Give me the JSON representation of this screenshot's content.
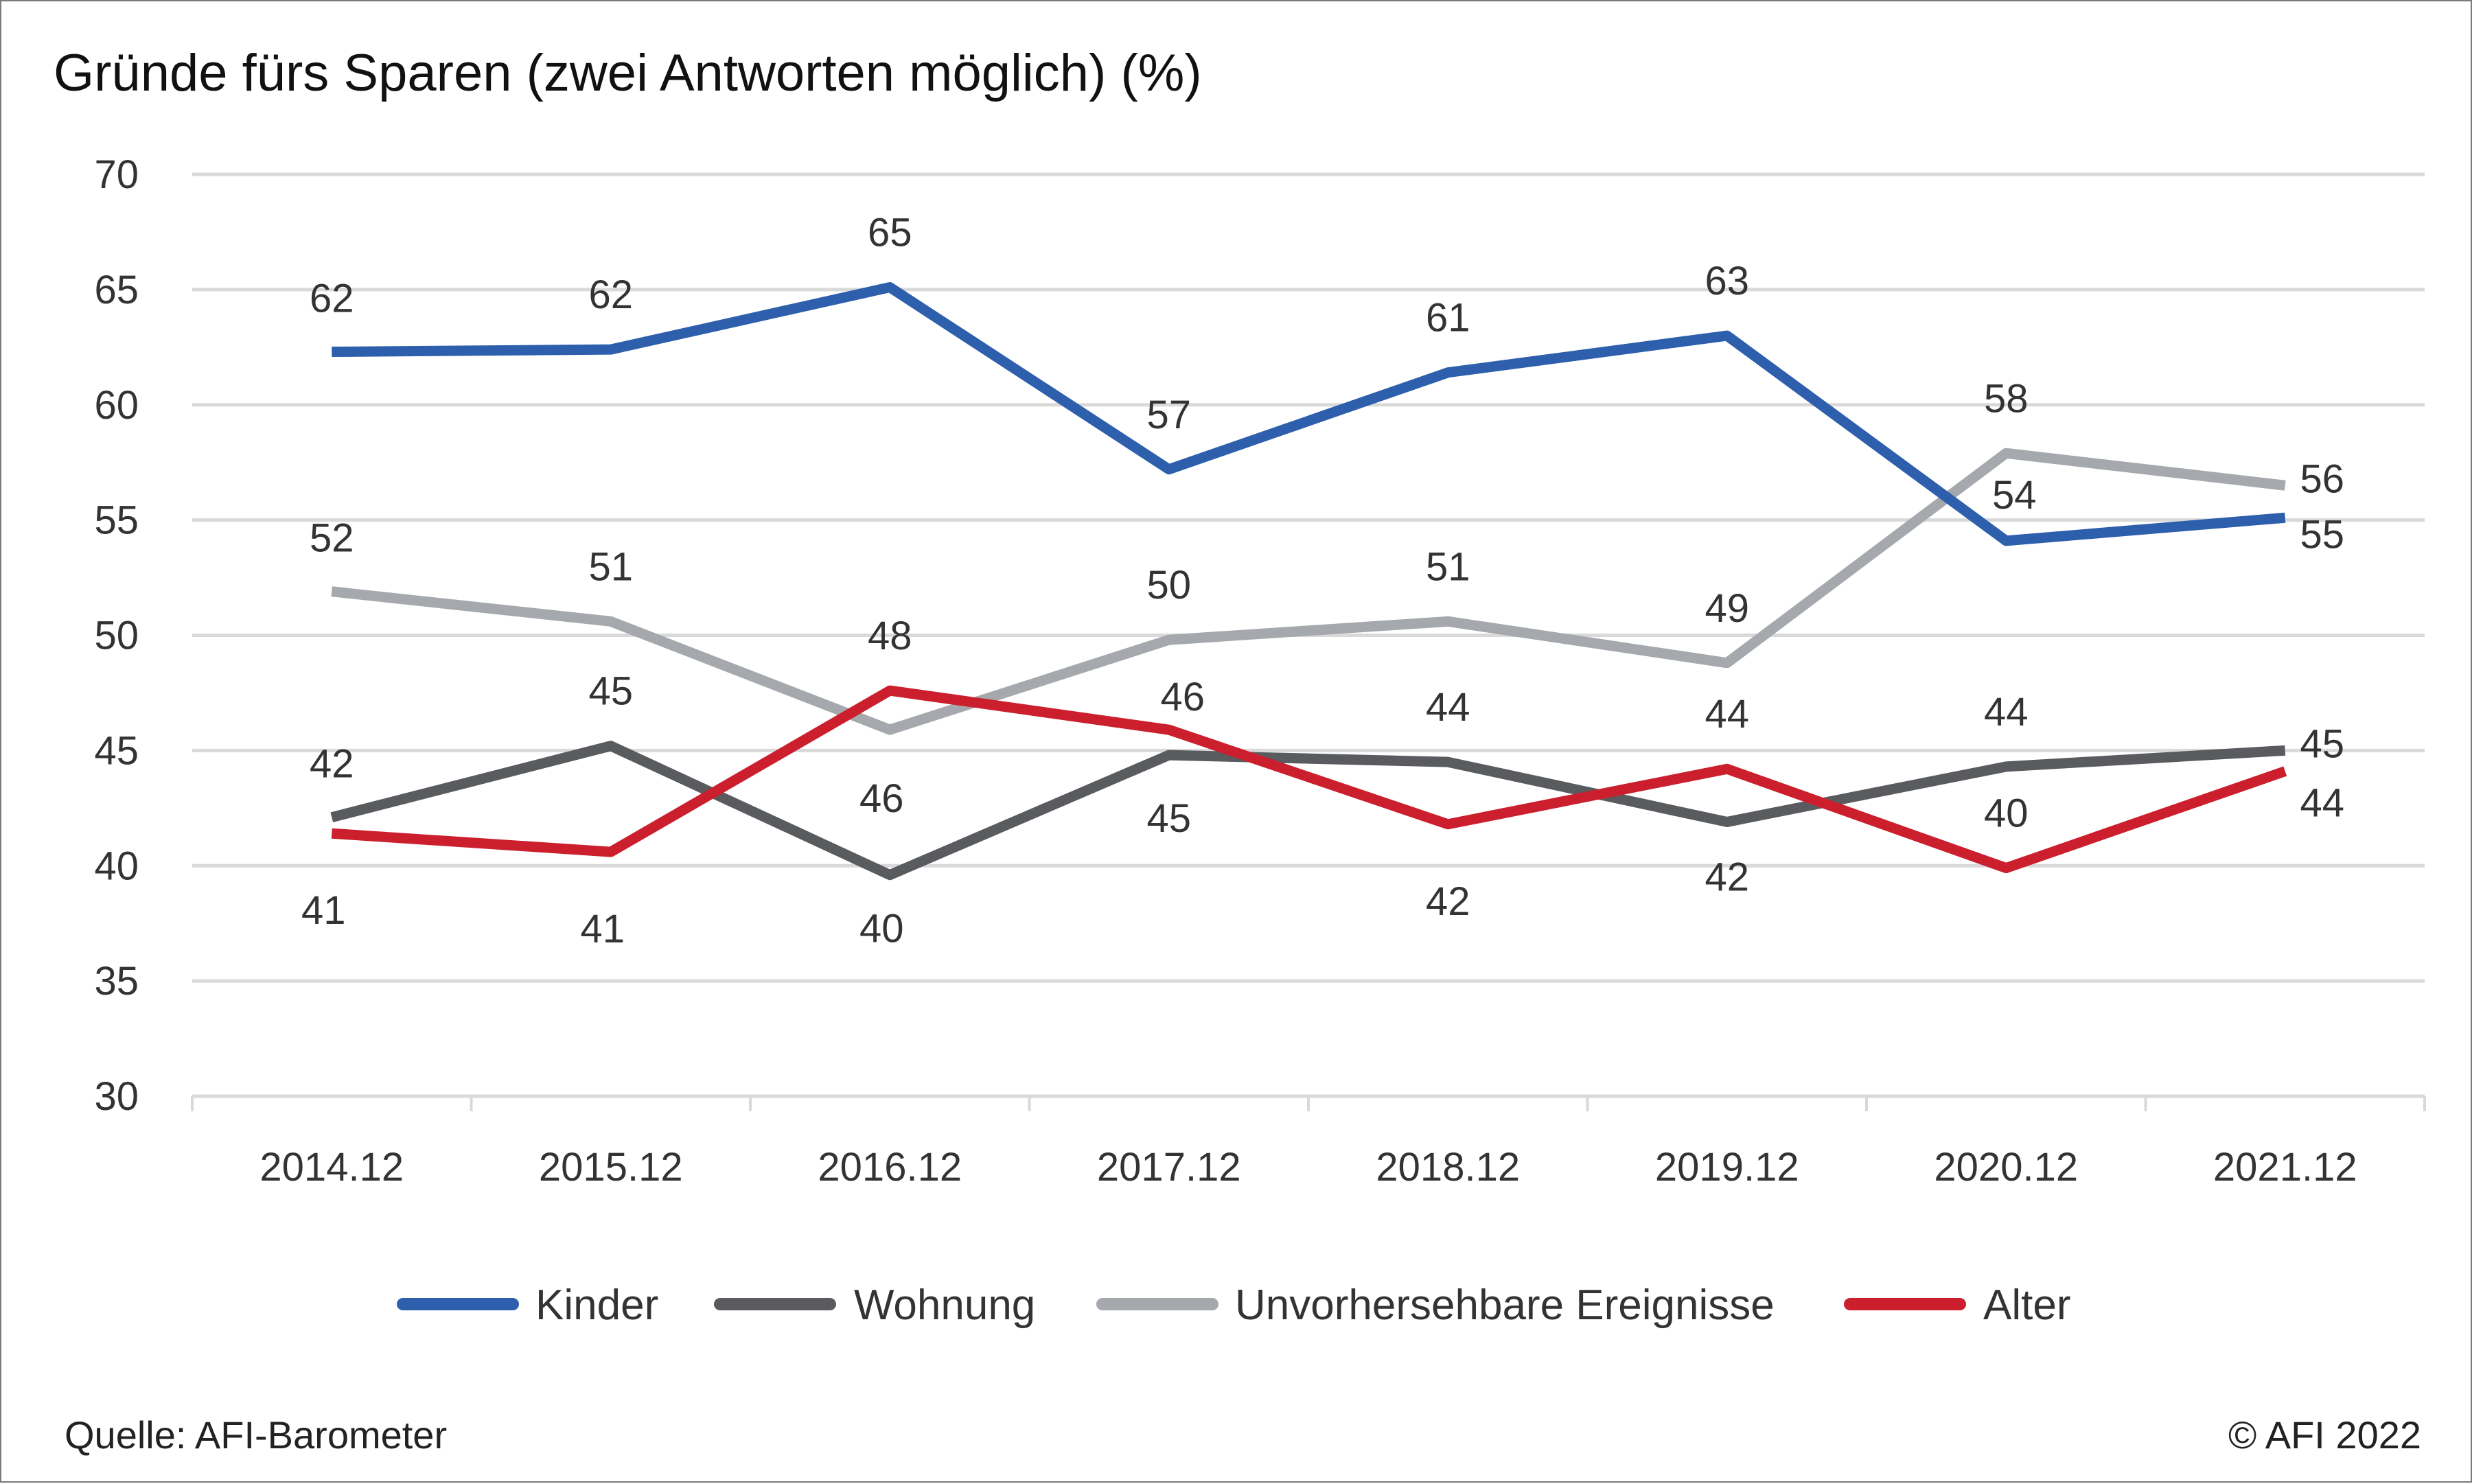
{
  "chart_data": {
    "type": "line",
    "title": "Gründe fürs Sparen (zwei Antworten möglich) (%)",
    "xlabel": "",
    "ylabel": "",
    "ylim": [
      30,
      70
    ],
    "yticks": [
      "30",
      "35",
      "40",
      "45",
      "50",
      "55",
      "60",
      "65",
      "70"
    ],
    "categories": [
      "2014.12",
      "2015.12",
      "2016.12",
      "2017.12",
      "2018.12",
      "2019.12",
      "2020.12",
      "2021.12"
    ],
    "grid": true,
    "legend_position": "bottom",
    "series": [
      {
        "name": "Kinder",
        "color": "#2d5fac",
        "values": [
          62.3,
          62.4,
          65.1,
          57.2,
          61.4,
          63.0,
          54.1,
          55.1
        ],
        "labels": [
          "62",
          "62",
          "65",
          "57",
          "61",
          "63",
          "54",
          "55"
        ]
      },
      {
        "name": "Wohnung",
        "color": "#595b5e",
        "values": [
          42.1,
          45.2,
          39.6,
          44.8,
          44.5,
          41.9,
          44.3,
          45.0
        ],
        "labels": [
          "42",
          "45",
          "40",
          "45",
          "44",
          "42",
          "44",
          "45"
        ]
      },
      {
        "name": "Unvorhersehbare Ereignisse",
        "color": "#a5a8ac",
        "values": [
          51.9,
          50.6,
          45.9,
          49.8,
          50.6,
          48.8,
          57.9,
          56.5
        ],
        "labels": [
          "52",
          "51",
          "46",
          "50",
          "51",
          "49",
          "58",
          "56"
        ]
      },
      {
        "name": "Alter",
        "color": "#cc1f2e",
        "values": [
          41.4,
          40.6,
          47.6,
          45.9,
          41.8,
          44.2,
          39.9,
          44.1
        ],
        "labels": [
          "41",
          "41",
          "48",
          "46",
          "42",
          "44",
          "40",
          "44"
        ]
      }
    ]
  },
  "footer": {
    "source": "Quelle: AFI-Barometer",
    "copyright": "© AFI 2022"
  }
}
